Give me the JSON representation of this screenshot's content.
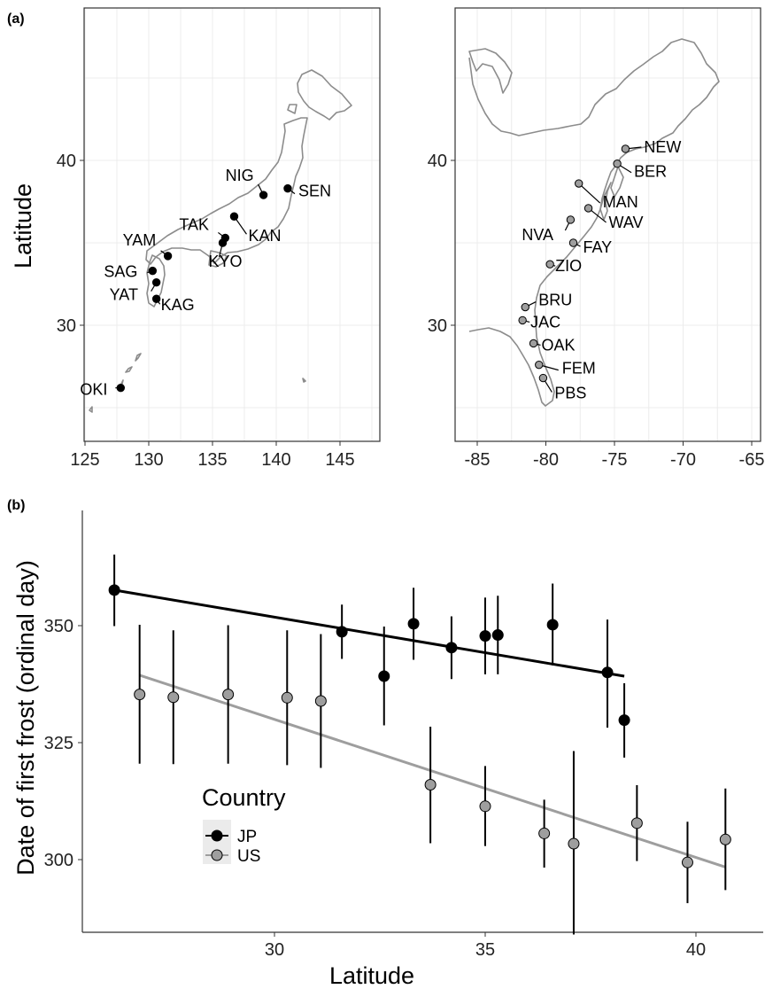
{
  "panels": {
    "a_label": "(a)",
    "b_label": "(b)"
  },
  "chart_data": [
    {
      "type": "scatter",
      "title": "",
      "xlabel": "",
      "ylabel": "Latitude",
      "xlim": [
        123,
        148
      ],
      "ylim": [
        22,
        50
      ],
      "xticks": [
        "125",
        "130",
        "135",
        "140",
        "145"
      ],
      "yticks": [
        "30",
        "40"
      ],
      "grid": true,
      "map_region": "Japan",
      "marker_color": "#000000",
      "sites": [
        {
          "label": "NIG",
          "lon": 139.0,
          "lat": 37.9
        },
        {
          "label": "SEN",
          "lon": 140.9,
          "lat": 38.3
        },
        {
          "label": "TAK",
          "lon": 136.0,
          "lat": 35.3
        },
        {
          "label": "KAN",
          "lon": 136.7,
          "lat": 36.6
        },
        {
          "label": "KYO",
          "lon": 135.8,
          "lat": 35.0
        },
        {
          "label": "YAM",
          "lon": 131.5,
          "lat": 34.2
        },
        {
          "label": "SAG",
          "lon": 130.3,
          "lat": 33.3
        },
        {
          "label": "YAT",
          "lon": 130.6,
          "lat": 32.6
        },
        {
          "label": "KAG",
          "lon": 130.6,
          "lat": 31.6
        },
        {
          "label": "OKI",
          "lon": 127.8,
          "lat": 26.2
        }
      ]
    },
    {
      "type": "scatter",
      "title": "",
      "xlabel": "",
      "ylabel": "",
      "xlim": [
        -88,
        -64
      ],
      "ylim": [
        22,
        50
      ],
      "xticks": [
        "-85",
        "-80",
        "-75",
        "-70",
        "-65"
      ],
      "yticks": [
        "30",
        "40"
      ],
      "grid": true,
      "map_region": "Eastern United States",
      "marker_color": "#9e9e9e",
      "sites": [
        {
          "label": "NEW",
          "lon": -74.2,
          "lat": 40.7
        },
        {
          "label": "BER",
          "lon": -74.8,
          "lat": 39.8
        },
        {
          "label": "MAN",
          "lon": -77.6,
          "lat": 38.6
        },
        {
          "label": "WAV",
          "lon": -76.9,
          "lat": 37.1
        },
        {
          "label": "NVA",
          "lon": -78.2,
          "lat": 36.4
        },
        {
          "label": "FAY",
          "lon": -78.0,
          "lat": 35.0
        },
        {
          "label": "ZIO",
          "lon": -79.7,
          "lat": 33.7
        },
        {
          "label": "BRU",
          "lon": -81.5,
          "lat": 31.1
        },
        {
          "label": "JAC",
          "lon": -81.7,
          "lat": 30.3
        },
        {
          "label": "OAK",
          "lon": -80.9,
          "lat": 28.9
        },
        {
          "label": "FEM",
          "lon": -80.5,
          "lat": 27.6
        },
        {
          "label": "PBS",
          "lon": -80.2,
          "lat": 26.8
        }
      ]
    },
    {
      "type": "scatter",
      "title": "",
      "xlabel": "Latitude",
      "ylabel": "Date of first frost (ordinal day)",
      "xlim": [
        25.6,
        41.3
      ],
      "ylim": [
        283,
        368
      ],
      "xticks": [
        "30",
        "35",
        "40"
      ],
      "yticks": [
        "300",
        "325",
        "350"
      ],
      "grid": false,
      "legend": {
        "title": "Country",
        "position": "bottom-left"
      },
      "series": [
        {
          "name": "JP",
          "color": "#000000",
          "trend": {
            "x": [
              26.2,
              38.3
            ],
            "y": [
              357.6,
              339.2
            ]
          },
          "points": [
            {
              "x": 26.2,
              "y": 357.6,
              "lo": 349.9,
              "hi": 365.2
            },
            {
              "x": 31.6,
              "y": 348.7,
              "lo": 342.9,
              "hi": 354.5
            },
            {
              "x": 32.6,
              "y": 339.2,
              "lo": 328.7,
              "hi": 349.8
            },
            {
              "x": 33.3,
              "y": 350.4,
              "lo": 342.7,
              "hi": 358.1
            },
            {
              "x": 34.2,
              "y": 345.3,
              "lo": 338.6,
              "hi": 352.0
            },
            {
              "x": 35.0,
              "y": 347.8,
              "lo": 339.6,
              "hi": 356.0
            },
            {
              "x": 35.3,
              "y": 348.0,
              "lo": 339.6,
              "hi": 356.4
            },
            {
              "x": 36.6,
              "y": 350.2,
              "lo": 341.5,
              "hi": 359.0
            },
            {
              "x": 37.9,
              "y": 340.0,
              "lo": 328.2,
              "hi": 351.3
            },
            {
              "x": 38.3,
              "y": 329.8,
              "lo": 321.8,
              "hi": 337.7
            }
          ]
        },
        {
          "name": "US",
          "color": "#9e9e9e",
          "trend": {
            "x": [
              26.8,
              40.7
            ],
            "y": [
              339.4,
              298.4
            ]
          },
          "points": [
            {
              "x": 26.8,
              "y": 335.3,
              "lo": 320.5,
              "hi": 350.2
            },
            {
              "x": 27.6,
              "y": 334.7,
              "lo": 320.4,
              "hi": 349.0
            },
            {
              "x": 28.9,
              "y": 335.3,
              "lo": 320.5,
              "hi": 350.1
            },
            {
              "x": 30.3,
              "y": 334.6,
              "lo": 320.2,
              "hi": 349.0
            },
            {
              "x": 31.1,
              "y": 333.9,
              "lo": 319.6,
              "hi": 348.2
            },
            {
              "x": 33.7,
              "y": 316.0,
              "lo": 303.5,
              "hi": 328.4
            },
            {
              "x": 35.0,
              "y": 311.4,
              "lo": 302.9,
              "hi": 320.0
            },
            {
              "x": 36.4,
              "y": 305.6,
              "lo": 298.3,
              "hi": 312.8
            },
            {
              "x": 37.1,
              "y": 303.4,
              "lo": 284.0,
              "hi": 323.2
            },
            {
              "x": 38.6,
              "y": 307.8,
              "lo": 299.7,
              "hi": 315.9
            },
            {
              "x": 39.8,
              "y": 299.4,
              "lo": 290.7,
              "hi": 308.1
            },
            {
              "x": 40.7,
              "y": 304.3,
              "lo": 293.5,
              "hi": 315.2
            }
          ]
        }
      ]
    }
  ]
}
